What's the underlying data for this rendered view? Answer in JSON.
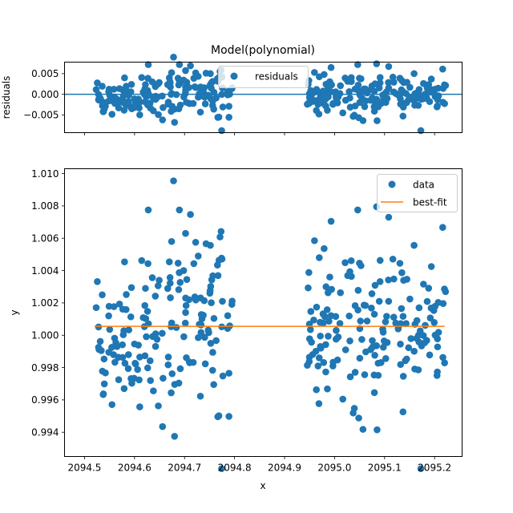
{
  "chart_data": [
    {
      "type": "scatter",
      "title": "Model(polynomial)",
      "xlabel": "",
      "ylabel": "residuals",
      "xlim": [
        2094.46,
        2095.255
      ],
      "ylim": [
        -0.0093,
        0.0078
      ],
      "yticks": [
        -0.005,
        0.0,
        0.005
      ],
      "ytick_labels": [
        "−0.005",
        "0.000",
        "0.005"
      ],
      "xticks": [
        2094.5,
        2094.6,
        2094.7,
        2094.8,
        2094.9,
        2095.0,
        2095.1,
        2095.2
      ],
      "xtick_labels": [
        "",
        "",
        "",
        "",
        "",
        "",
        "",
        ""
      ],
      "zero_line": 0.0,
      "legend": {
        "placement": "upper center",
        "entries": [
          {
            "label": "residuals",
            "kind": "marker",
            "color": "#1f77b4"
          }
        ]
      },
      "series": [
        {
          "name": "residuals",
          "color": "#1f77b4",
          "points": []
        }
      ]
    },
    {
      "type": "scatter",
      "title": "",
      "xlabel": "x",
      "ylabel": "y",
      "xlim": [
        2094.46,
        2095.255
      ],
      "ylim": [
        0.9925,
        1.0103
      ],
      "yticks": [
        0.994,
        0.996,
        0.998,
        1.0,
        1.002,
        1.004,
        1.006,
        1.008,
        1.01
      ],
      "ytick_labels": [
        "0.994",
        "0.996",
        "0.998",
        "1.000",
        "1.002",
        "1.004",
        "1.006",
        "1.008",
        "1.010"
      ],
      "xticks": [
        2094.5,
        2094.6,
        2094.7,
        2094.8,
        2094.9,
        2095.0,
        2095.1,
        2095.2
      ],
      "xtick_labels": [
        "2094.5",
        "2094.6",
        "2094.7",
        "2094.8",
        "2094.9",
        "2095.0",
        "2095.1",
        "2095.2"
      ],
      "legend": {
        "placement": "upper right",
        "entries": [
          {
            "label": "data",
            "kind": "marker",
            "color": "#1f77b4"
          },
          {
            "label": "best-fit",
            "kind": "line",
            "color": "#ff7f0e"
          }
        ]
      },
      "series": [
        {
          "name": "data",
          "color": "#1f77b4",
          "points": []
        },
        {
          "name": "best-fit",
          "color": "#ff7f0e",
          "line": [
            [
              2094.52,
              1.00055
            ],
            [
              2095.22,
              1.00055
            ]
          ]
        }
      ]
    }
  ]
}
